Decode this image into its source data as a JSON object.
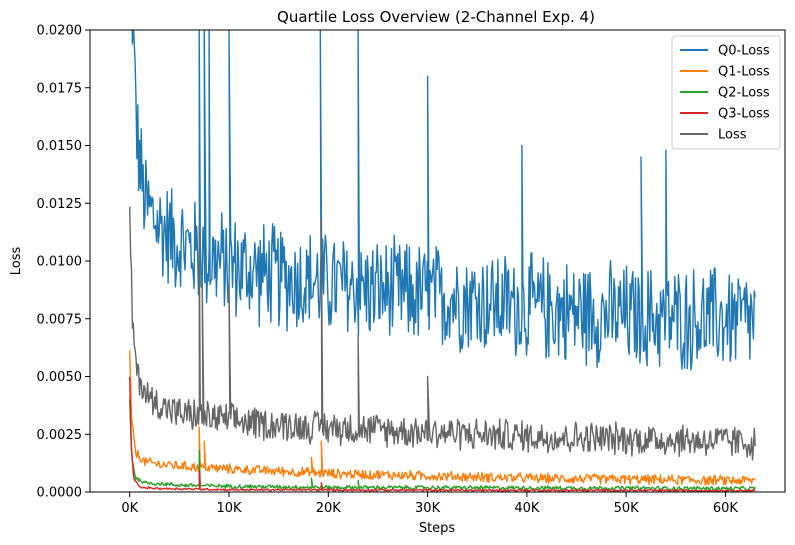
{
  "chart_data": {
    "type": "line",
    "title": "Quartile Loss Overview (2-Channel Exp. 4)",
    "xlabel": "Steps",
    "ylabel": "Loss",
    "xlim": [
      -4000,
      66000
    ],
    "ylim": [
      0,
      0.02
    ],
    "x_ticks": [
      0,
      10000,
      20000,
      30000,
      40000,
      50000,
      60000
    ],
    "x_tick_labels": [
      "0K",
      "10K",
      "20K",
      "30K",
      "40K",
      "50K",
      "60K"
    ],
    "y_ticks": [
      0,
      0.0025,
      0.005,
      0.0075,
      0.01,
      0.0125,
      0.015,
      0.0175,
      0.02
    ],
    "y_tick_labels": [
      "0.0000",
      "0.0025",
      "0.0050",
      "0.0075",
      "0.0100",
      "0.0125",
      "0.0150",
      "0.0175",
      "0.0200"
    ],
    "grid": false,
    "legend_position": "top-right",
    "series": [
      {
        "name": "Q0-Loss",
        "color": "#1f77b4",
        "noise": 0.0016,
        "points": [
          [
            0,
            0.03
          ],
          [
            300,
            0.02
          ],
          [
            800,
            0.015
          ],
          [
            1500,
            0.0125
          ],
          [
            3000,
            0.0115
          ],
          [
            5000,
            0.0108
          ],
          [
            7000,
            0.0103
          ],
          [
            10000,
            0.0098
          ],
          [
            15000,
            0.0093
          ],
          [
            20000,
            0.009
          ],
          [
            25000,
            0.0087
          ],
          [
            30000,
            0.0085
          ],
          [
            35000,
            0.0083
          ],
          [
            40000,
            0.008
          ],
          [
            45000,
            0.0078
          ],
          [
            50000,
            0.0076
          ],
          [
            55000,
            0.0075
          ],
          [
            60000,
            0.0075
          ],
          [
            63000,
            0.0074
          ]
        ],
        "spikes": [
          [
            7000,
            0.02
          ],
          [
            7500,
            0.02
          ],
          [
            8000,
            0.02
          ],
          [
            10000,
            0.02
          ],
          [
            19200,
            0.02
          ],
          [
            23000,
            0.02
          ],
          [
            30000,
            0.018
          ],
          [
            39500,
            0.015
          ],
          [
            51500,
            0.0145
          ],
          [
            54000,
            0.0148
          ]
        ]
      },
      {
        "name": "Q1-Loss",
        "color": "#ff7f0e",
        "noise": 0.00015,
        "points": [
          [
            0,
            0.006
          ],
          [
            200,
            0.003
          ],
          [
            600,
            0.0017
          ],
          [
            1500,
            0.0013
          ],
          [
            3000,
            0.0012
          ],
          [
            6000,
            0.0011
          ],
          [
            10000,
            0.001
          ],
          [
            15000,
            0.0009
          ],
          [
            20000,
            0.0008
          ],
          [
            30000,
            0.0007
          ],
          [
            40000,
            0.0006
          ],
          [
            50000,
            0.00055
          ],
          [
            60000,
            0.0005
          ],
          [
            63000,
            0.0005
          ]
        ],
        "spikes": [
          [
            7000,
            0.0028
          ],
          [
            7500,
            0.0022
          ],
          [
            18300,
            0.0015
          ],
          [
            19300,
            0.0022
          ]
        ]
      },
      {
        "name": "Q2-Loss",
        "color": "#2ca02c",
        "noise": 6e-05,
        "points": [
          [
            0,
            0.004
          ],
          [
            200,
            0.0015
          ],
          [
            600,
            0.0006
          ],
          [
            1500,
            0.0004
          ],
          [
            5000,
            0.0003
          ],
          [
            10000,
            0.00025
          ],
          [
            20000,
            0.0002
          ],
          [
            40000,
            0.00018
          ],
          [
            63000,
            0.00015
          ]
        ],
        "spikes": [
          [
            7000,
            0.0018
          ],
          [
            18300,
            0.0006
          ],
          [
            23000,
            0.0005
          ]
        ]
      },
      {
        "name": "Q3-Loss",
        "color": "#d62728",
        "noise": 3e-05,
        "points": [
          [
            0,
            0.005
          ],
          [
            150,
            0.002
          ],
          [
            400,
            0.0006
          ],
          [
            1000,
            0.0002
          ],
          [
            3000,
            0.00015
          ],
          [
            10000,
            0.0001
          ],
          [
            30000,
            8e-05
          ],
          [
            63000,
            6e-05
          ]
        ],
        "spikes": [
          [
            7000,
            0.0009
          ],
          [
            19300,
            0.0004
          ]
        ]
      },
      {
        "name": "Loss",
        "color": "#666666",
        "noise": 0.0005,
        "points": [
          [
            0,
            0.012
          ],
          [
            300,
            0.007
          ],
          [
            800,
            0.005
          ],
          [
            2000,
            0.004
          ],
          [
            5000,
            0.0034
          ],
          [
            10000,
            0.0031
          ],
          [
            15000,
            0.0029
          ],
          [
            20000,
            0.0028
          ],
          [
            30000,
            0.0026
          ],
          [
            40000,
            0.0024
          ],
          [
            50000,
            0.0023
          ],
          [
            60000,
            0.0022
          ],
          [
            63000,
            0.0021
          ]
        ],
        "spikes": [
          [
            7000,
            0.0115
          ],
          [
            7300,
            0.009
          ],
          [
            10000,
            0.009
          ],
          [
            19300,
            0.0118
          ],
          [
            23000,
            0.0068
          ],
          [
            30000,
            0.005
          ]
        ]
      }
    ]
  }
}
